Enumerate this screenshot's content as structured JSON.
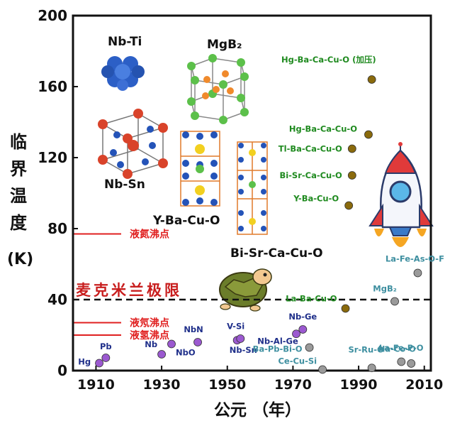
{
  "chart_data": {
    "type": "scatter",
    "title": "",
    "xlabel": "公元 （年）",
    "ylabel": [
      "临",
      "界",
      "温",
      "度",
      "(K)"
    ],
    "xlim": [
      1903,
      2012
    ],
    "ylim": [
      0,
      200
    ],
    "xticks": [
      1910,
      1930,
      1950,
      1970,
      1990,
      2010
    ],
    "yticks": [
      0,
      40,
      80,
      120,
      160,
      200
    ],
    "grid": false,
    "series": [
      {
        "color": "#9b59d0",
        "label_color": "#1f2f8a",
        "points": [
          {
            "label": "Hg",
            "x": 1911,
            "y": 4.2
          },
          {
            "label": "Pb",
            "x": 1913,
            "y": 7.2
          },
          {
            "label": "Nb",
            "x": 1930,
            "y": 9.2
          },
          {
            "label": "NbO",
            "x": 1933,
            "y": 15
          },
          {
            "label": "NbN",
            "x": 1941,
            "y": 16
          },
          {
            "label": "V-Si",
            "x": 1953,
            "y": 17.1
          },
          {
            "label": "Nb-Sn",
            "x": 1954,
            "y": 18
          },
          {
            "label": "Nb-Al-Ge",
            "x": 1971,
            "y": 20.7
          },
          {
            "label": "Nb-Ge",
            "x": 1973,
            "y": 23.2
          }
        ]
      },
      {
        "color": "#8a6a0c",
        "label_color": "#1f8a1f",
        "points": [
          {
            "label": "La-Ba-Cu-O",
            "x": 1986,
            "y": 35
          },
          {
            "label": "Y-Ba-Cu-O",
            "x": 1987,
            "y": 93
          },
          {
            "label": "Bi-Sr-Ca-Cu-O",
            "x": 1988,
            "y": 110
          },
          {
            "label": "Tl-Ba-Ca-Cu-O",
            "x": 1988,
            "y": 125
          },
          {
            "label": "Hg-Ba-Ca-Cu-O",
            "x": 1993,
            "y": 133
          },
          {
            "label": "Hg-Ba-Ca-Cu-O (加压)",
            "x": 1994,
            "y": 164
          }
        ]
      },
      {
        "color": "#9a9a9a",
        "label_color": "#3e8fa0",
        "points": [
          {
            "label": "Ba-Pb-Bi-O",
            "x": 1975,
            "y": 13
          },
          {
            "label": "Ce-Cu-Si",
            "x": 1979,
            "y": 0.6
          },
          {
            "label": "Sr-Ru-O",
            "x": 1994,
            "y": 1.5
          },
          {
            "label": "Na-Co-O",
            "x": 2003,
            "y": 5
          },
          {
            "label": "MgB₂",
            "x": 2001,
            "y": 39
          },
          {
            "label": "La-Fe-P-O",
            "x": 2006,
            "y": 4
          },
          {
            "label": "La-Fe-As-O-F",
            "x": 2008,
            "y": 55
          }
        ]
      }
    ],
    "reference_lines": [
      {
        "label": "液氮沸点",
        "y": 77,
        "style": "solid",
        "color": "#e02020"
      },
      {
        "label": "麦克米兰极限",
        "y": 40,
        "style": "dashed",
        "color": "#111111"
      },
      {
        "label": "液氖沸点",
        "y": 27,
        "style": "solid",
        "color": "#e02020"
      },
      {
        "label": "液氢沸点",
        "y": 20,
        "style": "solid",
        "color": "#e02020"
      }
    ],
    "structure_labels": [
      "Nb-Ti",
      "MgB₂",
      "Nb-Sn",
      "Y-Ba-Cu-O",
      "Bi-Sr-Ca-Cu-O"
    ]
  }
}
